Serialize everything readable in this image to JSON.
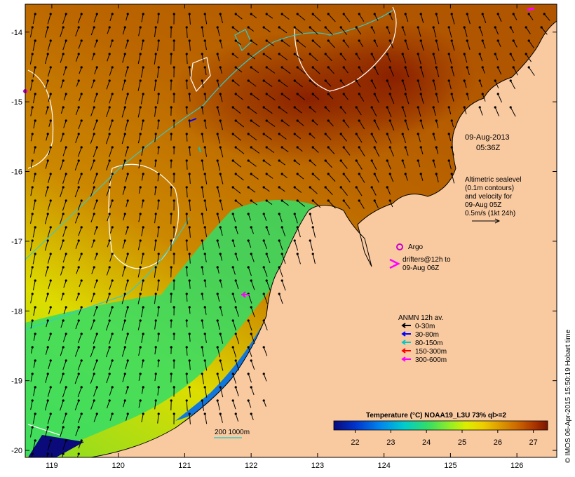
{
  "map": {
    "lon_range": [
      118.6,
      126.6
    ],
    "lat_range": [
      -20.1,
      -13.6
    ],
    "lon_ticks": [
      "119",
      "120",
      "121",
      "122",
      "123",
      "124",
      "125",
      "126"
    ],
    "lat_ticks": [
      "-14",
      "-15",
      "-16",
      "-17",
      "-18",
      "-19",
      "-20"
    ]
  },
  "annotations": {
    "date": "09-Aug-2013",
    "time": "05:36Z",
    "altimetry": [
      "Altimetric sealevel",
      "(0.1m contours)",
      "and velocity for",
      "09-Aug 05Z",
      "0.5m/s (1kt 24h)"
    ],
    "argo_label": "Argo",
    "drifters": [
      "drifters@12h to",
      "09-Aug 06Z"
    ],
    "anmn_title": "ANMN 12h av.",
    "anmn_items": [
      {
        "label": "0-30m",
        "color": "#000000"
      },
      {
        "label": "30-80m",
        "color": "#0000ff"
      },
      {
        "label": "80-150m",
        "color": "#00c8c8"
      },
      {
        "label": "150-300m",
        "color": "#ff0000"
      },
      {
        "label": "300-600m",
        "color": "#ff00ff"
      }
    ],
    "isobath": "200  1000m",
    "credit": "© IMOS 06-Apr-2015 15:50:19 Hobart time"
  },
  "colorbar": {
    "title": "Temperature (°C) NOAA19_L3U 73% ql>=2",
    "ticks": [
      "22",
      "23",
      "24",
      "25",
      "26",
      "27"
    ],
    "colors": [
      "#0a0a7a",
      "#0033cc",
      "#0088ee",
      "#00cccc",
      "#33dd66",
      "#99ee22",
      "#ddee00",
      "#eecc00",
      "#dd9900",
      "#cc6600",
      "#aa3300",
      "#7a1400"
    ]
  },
  "colors": {
    "land": "#f9c9a0",
    "isobath": "#33cccc",
    "argo": "#cc00cc",
    "drifter": "#ff00ff"
  }
}
